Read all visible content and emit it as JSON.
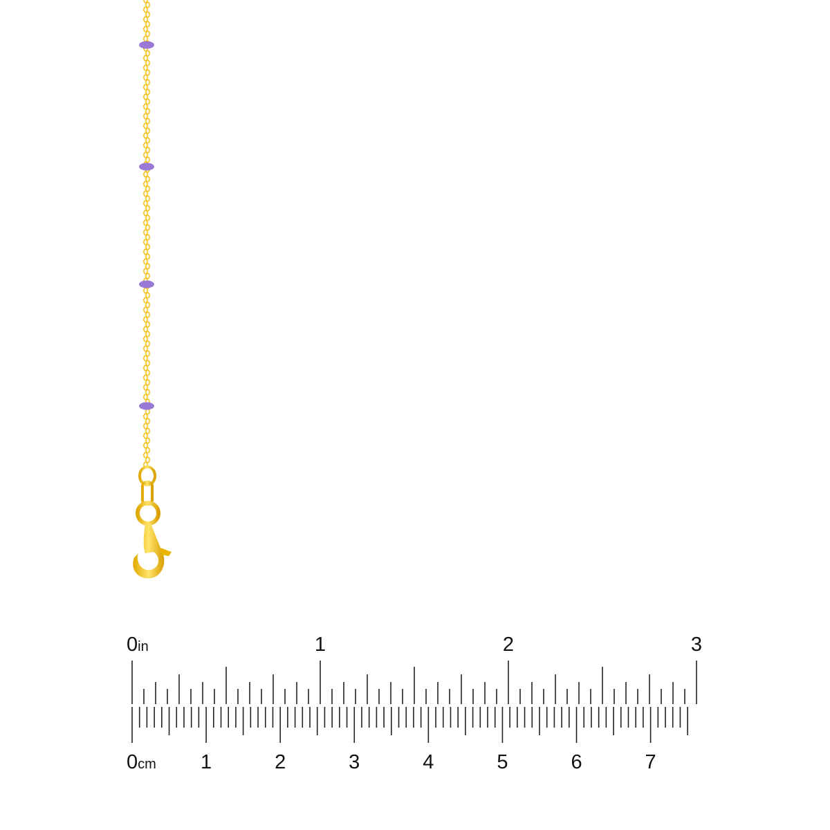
{
  "product": {
    "chain_color": "#f3c21a",
    "bead_color": "#9a78d6",
    "bead_count": 4
  },
  "ruler": {
    "inch": {
      "unit": "in",
      "labels": [
        "0",
        "1",
        "2",
        "3"
      ]
    },
    "cm": {
      "unit": "cm",
      "labels": [
        "0",
        "1",
        "2",
        "3",
        "4",
        "5",
        "6",
        "7"
      ]
    },
    "tick_color": "#222222"
  }
}
